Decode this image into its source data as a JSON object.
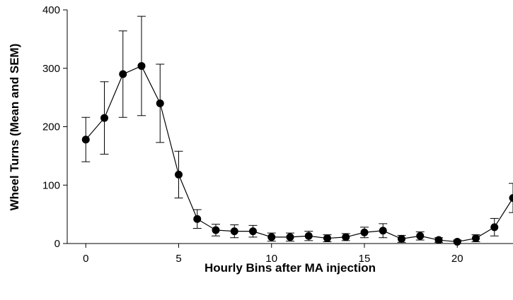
{
  "chart_data": {
    "type": "line",
    "x_label": "Hourly Bins after MA injection",
    "y_label": "Wheel Turns (Mean and SEM)",
    "x": [
      0,
      1,
      2,
      3,
      4,
      5,
      6,
      7,
      8,
      9,
      10,
      11,
      12,
      13,
      14,
      15,
      16,
      17,
      18,
      19,
      20,
      21,
      22,
      23
    ],
    "series": [
      {
        "color": "#000000",
        "values": [
          178,
          215,
          290,
          304,
          240,
          118,
          42,
          23,
          21,
          21,
          11,
          11,
          13,
          9,
          11,
          19,
          22,
          8,
          13,
          6,
          3,
          9,
          28,
          78
        ],
        "errors": [
          38,
          62,
          74,
          85,
          67,
          40,
          16,
          10,
          11,
          10,
          7,
          7,
          8,
          6,
          6,
          9,
          12,
          6,
          7,
          4,
          3,
          6,
          15,
          25
        ]
      }
    ],
    "xlim": [
      -1,
      23
    ],
    "xticks": [
      0,
      5,
      10,
      15,
      20
    ],
    "ylim": [
      0,
      400
    ],
    "yticks": [
      0,
      100,
      200,
      300,
      400
    ]
  }
}
